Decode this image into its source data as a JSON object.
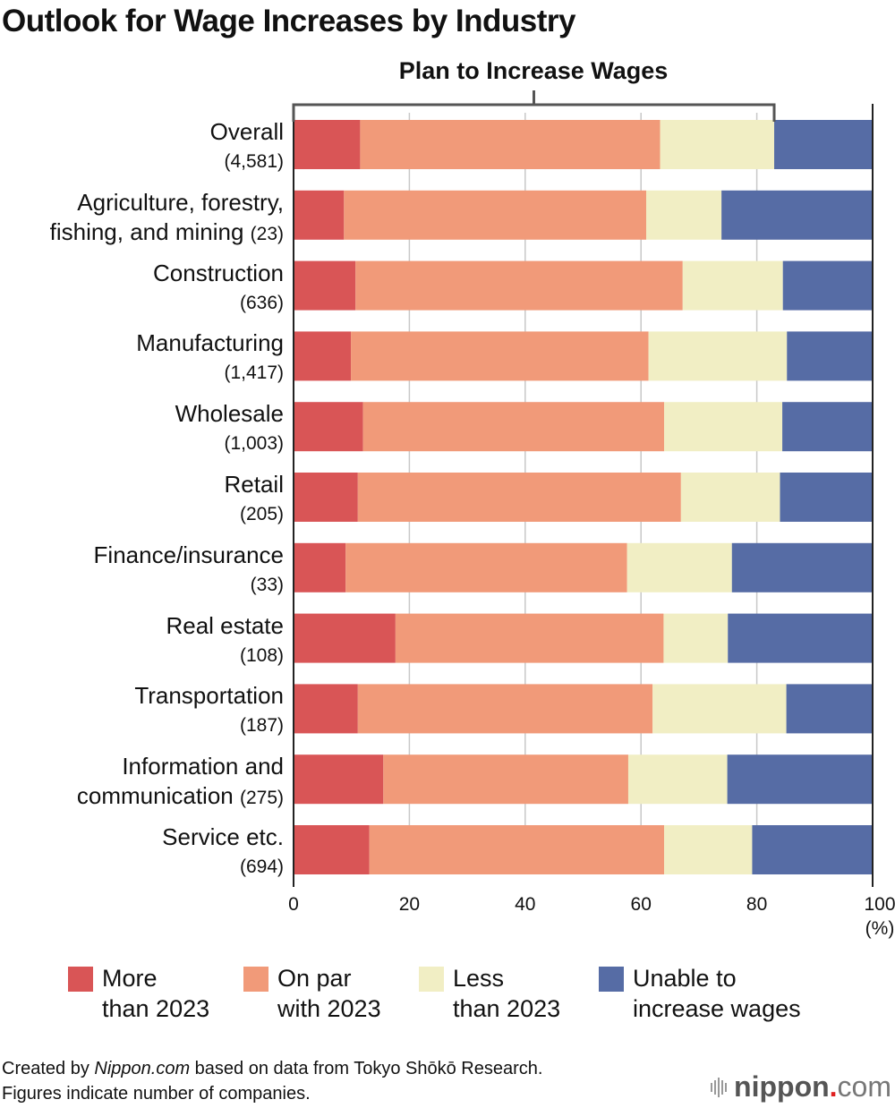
{
  "chart_data": {
    "type": "bar",
    "orientation": "horizontal",
    "stacked": true,
    "title": "Outlook for Wage Increases by Industry",
    "annotation": "Plan to Increase Wages",
    "annotation_spans_series": [
      "More than 2023",
      "On par with 2023",
      "Less than 2023"
    ],
    "xlabel": "(%)",
    "xlim": [
      0,
      100
    ],
    "xticks": [
      "0",
      "20",
      "40",
      "60",
      "80",
      "100"
    ],
    "grid": true,
    "legend_position": "bottom",
    "categories": [
      {
        "name": "Overall",
        "count": "(4,581)"
      },
      {
        "name": "Agriculture, forestry,",
        "name2": "fishing, and mining",
        "count": "(23)",
        "inline": true
      },
      {
        "name": "Construction",
        "count": "(636)"
      },
      {
        "name": "Manufacturing",
        "count": "(1,417)"
      },
      {
        "name": "Wholesale",
        "count": "(1,003)"
      },
      {
        "name": "Retail",
        "count": "(205)"
      },
      {
        "name": "Finance/insurance",
        "count": "(33)"
      },
      {
        "name": "Real estate",
        "count": "(108)"
      },
      {
        "name": "Transportation",
        "count": "(187)"
      },
      {
        "name": "Information and",
        "name2": "communication",
        "count": "(275)",
        "inline": true
      },
      {
        "name": "Service etc.",
        "count": "(694)"
      }
    ],
    "series": [
      {
        "name": "More than 2023",
        "label_lines": "More\nthan 2023",
        "color": "#d95556",
        "values": [
          11.5,
          8.7,
          10.7,
          9.9,
          12.0,
          11.1,
          9.0,
          17.6,
          11.1,
          15.5,
          13.1
        ]
      },
      {
        "name": "On par with 2023",
        "label_lines": "On par\nwith 2023",
        "color": "#f19a79",
        "values": [
          51.8,
          52.2,
          56.5,
          51.4,
          52.0,
          55.8,
          48.6,
          46.3,
          50.9,
          42.3,
          50.9
        ]
      },
      {
        "name": "Less than 2023",
        "label_lines": "Less\nthan 2023",
        "color": "#f1eec4",
        "values": [
          19.7,
          13.0,
          17.3,
          23.9,
          20.4,
          17.1,
          18.1,
          11.1,
          23.1,
          17.1,
          15.2
        ]
      },
      {
        "name": "Unable to increase wages",
        "label_lines": "Unable to\nincrease wages",
        "color": "#566ca5",
        "values": [
          17.0,
          26.1,
          15.5,
          14.8,
          15.6,
          16.0,
          24.3,
          25.0,
          14.9,
          25.1,
          20.8
        ]
      }
    ]
  },
  "footer": {
    "line1_prefix": "Created by ",
    "line1_source": "Nippon.com",
    "line1_suffix": " based on data from Tokyo Shōkō Research.",
    "line2": "Figures indicate number of companies."
  },
  "brand": {
    "bold": "nippon",
    "dot": ".",
    "light": "com"
  }
}
